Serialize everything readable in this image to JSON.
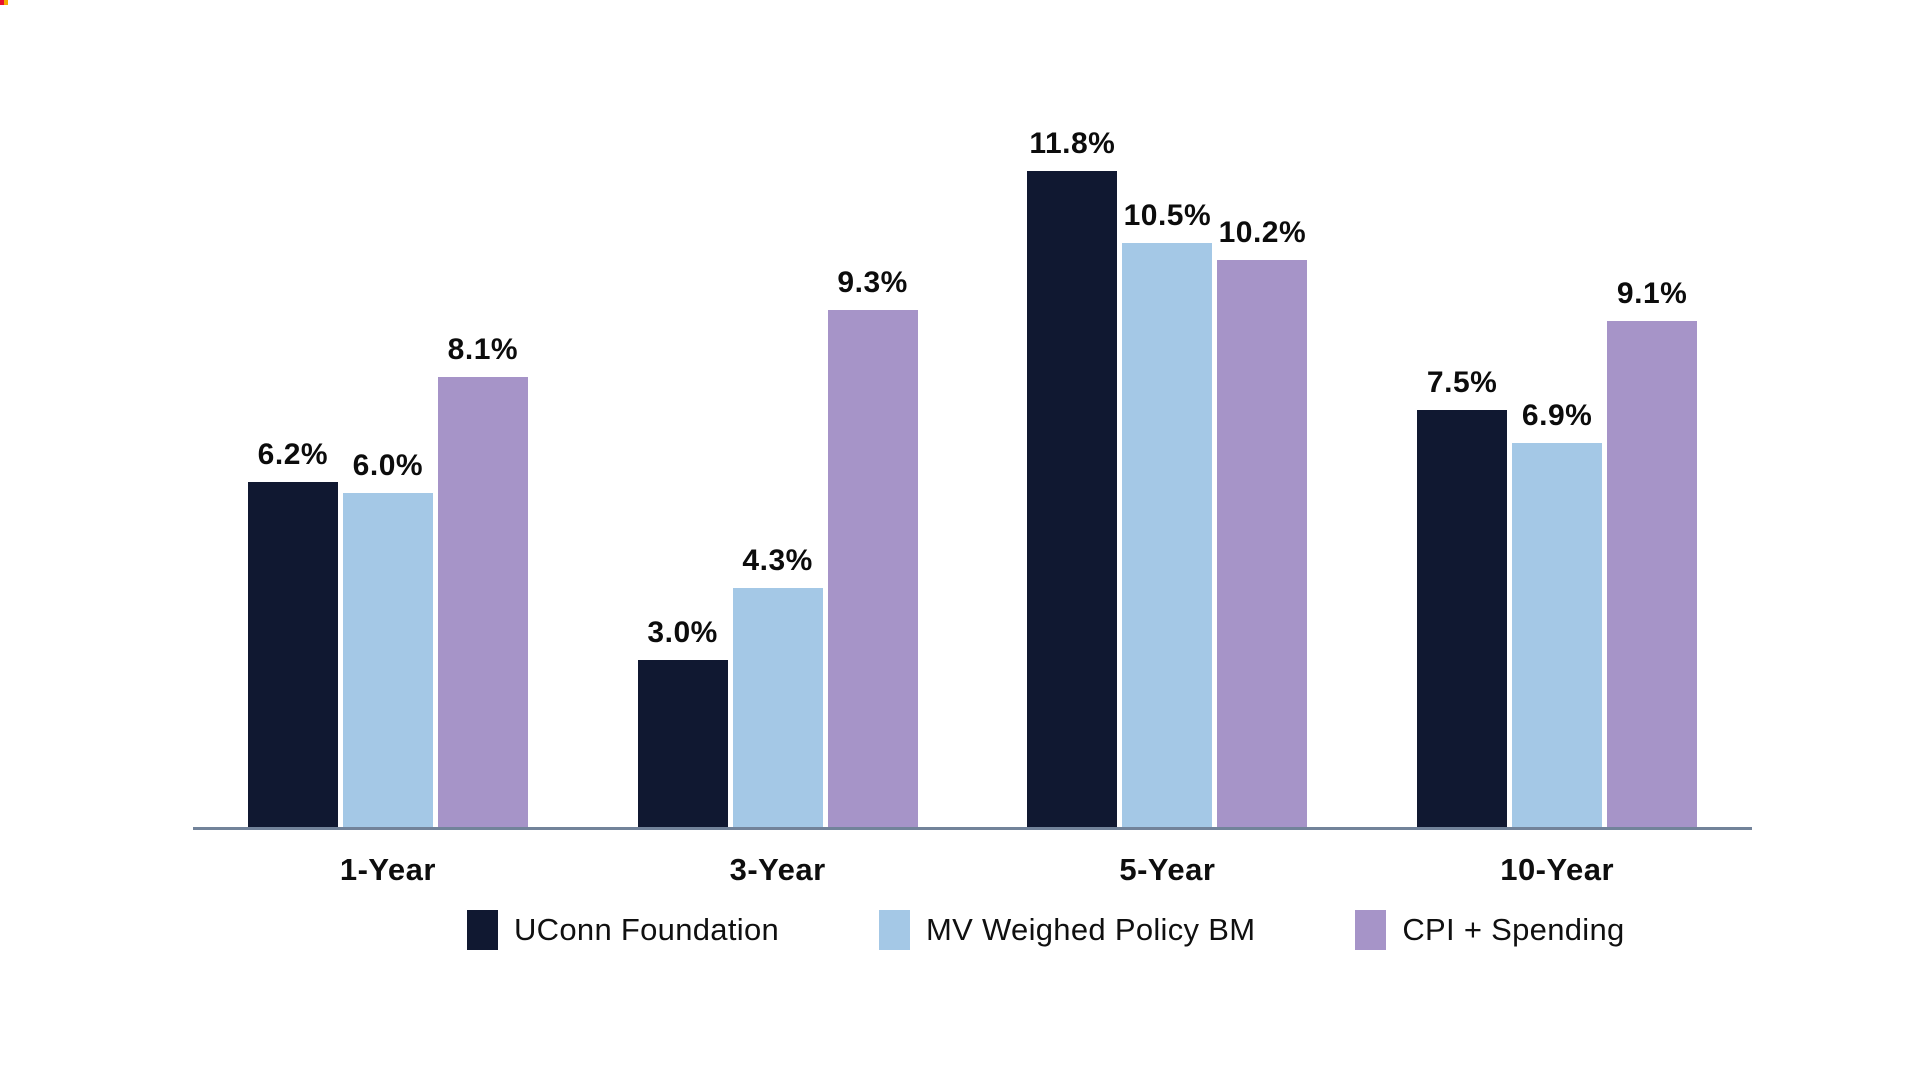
{
  "page": {
    "background_color": "#ffffff",
    "corner_artifact_colors": [
      "#e8112d",
      "#f5a800"
    ]
  },
  "chart_data": {
    "type": "bar",
    "title": "",
    "xlabel": "",
    "ylabel": "",
    "categories": [
      "1-Year",
      "3-Year",
      "5-Year",
      "10-Year"
    ],
    "series": [
      {
        "name": "UConn Foundation",
        "color": "#101831",
        "values": [
          6.2,
          3.0,
          11.8,
          7.5
        ]
      },
      {
        "name": "MV Weighed Policy BM",
        "color": "#A4C8E6",
        "values": [
          6.0,
          4.3,
          10.5,
          6.9
        ]
      },
      {
        "name": "CPI + Spending",
        "color": "#A694C8",
        "values": [
          8.1,
          9.3,
          10.2,
          9.1
        ]
      }
    ],
    "data_labels": {
      "visible": true,
      "format": "one_decimal",
      "suffix": "%"
    },
    "ylim": [
      0,
      12.5
    ],
    "grid": false,
    "y_axis_visible": false,
    "axis_line_color": "#72839A",
    "legend_position": "bottom",
    "label_color": "#0c0c0c"
  }
}
